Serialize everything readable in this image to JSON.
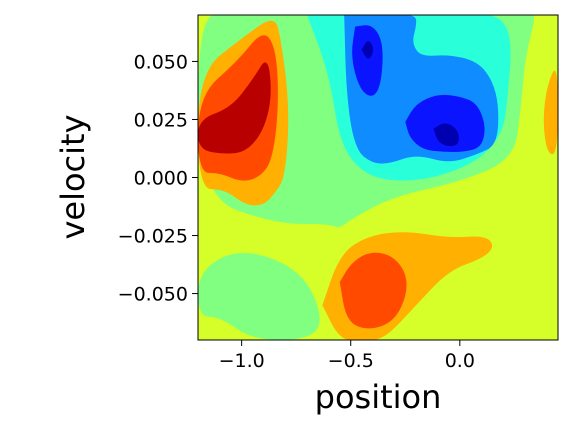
{
  "chart_data": {
    "type": "contourf",
    "xlabel": "position",
    "ylabel": "velocity",
    "xlim": [
      -1.2,
      0.45
    ],
    "ylim": [
      -0.07,
      0.07
    ],
    "x_ticks": [
      -1.0,
      -0.5,
      0.0
    ],
    "x_tick_labels": [
      "−1.0",
      "−0.5",
      "0.0"
    ],
    "y_ticks": [
      -0.05,
      -0.025,
      0.0,
      0.025,
      0.05
    ],
    "y_tick_labels": [
      "−0.050",
      "−0.025",
      "0.000",
      "0.025",
      "0.050"
    ],
    "colormap": "jet",
    "level_colors": [
      "#0000b0",
      "#0a14ff",
      "#0f8cff",
      "#29ffd9",
      "#80ff80",
      "#d6ff29",
      "#ffb000",
      "#ff4a00",
      "#b80000"
    ],
    "background_color": "#d6ff29",
    "regions": [
      {
        "level": 4,
        "x": [
          -1.2,
          -1.0,
          -0.72,
          -0.62,
          -0.7,
          -0.95,
          -1.1,
          -1.2
        ],
        "y": [
          -0.04,
          -0.03,
          -0.04,
          -0.062,
          -0.07,
          -0.07,
          -0.06,
          -0.06
        ]
      },
      {
        "level": 4,
        "x": [
          -1.2,
          -0.85,
          -0.6,
          -0.55,
          -0.5,
          -0.3,
          0.0,
          0.25,
          0.28,
          0.3,
          0.35,
          0.32,
          0.1,
          -0.1,
          -0.3,
          -0.5,
          -0.6,
          -0.82,
          -1.05,
          -1.2
        ],
        "y": [
          -0.008,
          -0.02,
          -0.02,
          -0.022,
          -0.018,
          -0.008,
          -0.002,
          0.008,
          0.03,
          0.052,
          0.07,
          0.07,
          0.07,
          0.07,
          0.07,
          0.07,
          0.07,
          0.07,
          0.07,
          0.07
        ]
      },
      {
        "level": 3,
        "x": [
          -0.7,
          -0.6,
          -0.55,
          -0.45,
          -0.3,
          -0.1,
          0.1,
          0.2,
          0.22,
          0.24,
          0.18,
          0.05,
          -0.2,
          -0.42,
          -0.6,
          -0.68,
          -0.7
        ],
        "y": [
          0.07,
          0.045,
          0.015,
          0.002,
          -0.002,
          0.0,
          0.008,
          0.02,
          0.035,
          0.06,
          0.07,
          0.07,
          0.07,
          0.07,
          0.07,
          0.07,
          0.07
        ]
      },
      {
        "level": 2,
        "x": [
          -0.53,
          -0.52,
          -0.48,
          -0.4,
          -0.32,
          -0.2,
          -0.05,
          0.08,
          0.17,
          0.18,
          0.15,
          0.08,
          -0.05,
          -0.18,
          -0.22,
          -0.2,
          -0.2,
          -0.3,
          -0.4,
          -0.5,
          -0.53
        ],
        "y": [
          0.07,
          0.035,
          0.012,
          0.006,
          0.006,
          0.01,
          0.006,
          0.01,
          0.014,
          0.03,
          0.042,
          0.05,
          0.053,
          0.052,
          0.058,
          0.065,
          0.07,
          0.07,
          0.07,
          0.07,
          0.07
        ]
      },
      {
        "level": 1,
        "x": [
          -0.48,
          -0.5,
          -0.46,
          -0.4,
          -0.36,
          -0.35,
          -0.4,
          -0.48
        ],
        "y": [
          0.065,
          0.052,
          0.038,
          0.034,
          0.04,
          0.058,
          0.066,
          0.065
        ]
      },
      {
        "level": 1,
        "x": [
          -0.25,
          -0.23,
          -0.17,
          -0.08,
          0.02,
          0.1,
          0.12,
          0.08,
          0.0,
          -0.1,
          -0.2,
          -0.25
        ],
        "y": [
          0.024,
          0.017,
          0.012,
          0.011,
          0.011,
          0.013,
          0.022,
          0.032,
          0.035,
          0.036,
          0.032,
          0.024
        ]
      },
      {
        "level": 0,
        "x": [
          -0.45,
          -0.42,
          -0.39,
          -0.42,
          -0.45
        ],
        "y": [
          0.055,
          0.06,
          0.055,
          0.05,
          0.055
        ]
      },
      {
        "level": 0,
        "x": [
          -0.12,
          -0.07,
          -0.01,
          0.0,
          -0.04,
          -0.1,
          -0.12
        ],
        "y": [
          0.021,
          0.024,
          0.021,
          0.015,
          0.013,
          0.015,
          0.021
        ]
      },
      {
        "level": 6,
        "x": [
          -1.2,
          -1.0,
          -0.85,
          -0.82,
          -0.78,
          -0.8,
          -0.85,
          -0.9,
          -0.98,
          -1.08,
          -1.2
        ],
        "y": [
          0.045,
          0.06,
          0.07,
          0.06,
          0.03,
          0.0,
          -0.007,
          -0.012,
          -0.012,
          -0.005,
          -0.005
        ]
      },
      {
        "level": 7,
        "x": [
          -1.2,
          -1.02,
          -0.9,
          -0.84,
          -0.83,
          -0.86,
          -0.92,
          -1.0,
          -1.1,
          -1.2
        ],
        "y": [
          0.035,
          0.05,
          0.064,
          0.055,
          0.03,
          0.007,
          0.0,
          -0.002,
          0.002,
          0.002
        ]
      },
      {
        "level": 8,
        "x": [
          -1.2,
          -1.05,
          -0.95,
          -0.88,
          -0.86,
          -0.9,
          -0.98,
          -1.08,
          -1.2
        ],
        "y": [
          0.025,
          0.03,
          0.042,
          0.053,
          0.035,
          0.02,
          0.011,
          0.01,
          0.012
        ]
      },
      {
        "level": 6,
        "x": [
          -0.63,
          -0.55,
          -0.42,
          -0.25,
          -0.05,
          0.12,
          0.16,
          0.1,
          -0.05,
          -0.2,
          -0.35,
          -0.45,
          -0.55,
          -0.63
        ],
        "y": [
          -0.055,
          -0.033,
          -0.025,
          -0.023,
          -0.026,
          -0.025,
          -0.03,
          -0.035,
          -0.04,
          -0.055,
          -0.07,
          -0.07,
          -0.07,
          -0.055
        ]
      },
      {
        "level": 7,
        "x": [
          -0.55,
          -0.5,
          -0.42,
          -0.32,
          -0.25,
          -0.24,
          -0.3,
          -0.42,
          -0.52,
          -0.55
        ],
        "y": [
          -0.045,
          -0.037,
          -0.032,
          -0.033,
          -0.04,
          -0.05,
          -0.062,
          -0.066,
          -0.062,
          -0.045
        ]
      },
      {
        "level": 6,
        "x": [
          0.45,
          0.4,
          0.38,
          0.4,
          0.45
        ],
        "y": [
          0.05,
          0.04,
          0.025,
          0.01,
          0.01
        ]
      }
    ]
  }
}
